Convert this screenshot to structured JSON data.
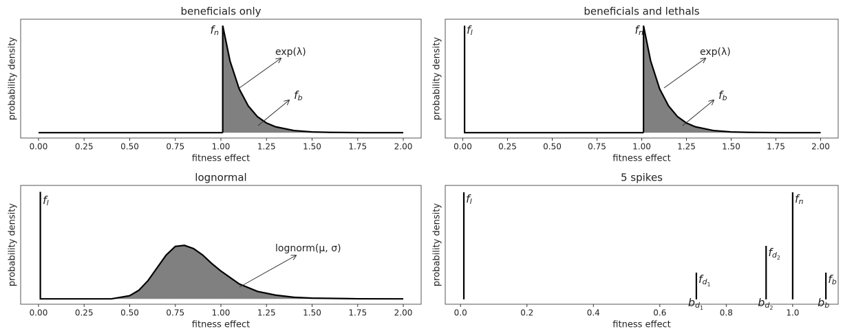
{
  "chart_data": [
    {
      "type": "line",
      "title": "beneficials only",
      "xlabel": "fitness effect",
      "ylabel": "probability density",
      "xlim": [
        -0.098,
        2.098
      ],
      "ylim": [
        -0.05,
        1.06
      ],
      "xticks": [
        {
          "value": 0,
          "label": "0.00"
        },
        0.25,
        {
          "value": 0.5,
          "label": "0.50"
        },
        0.75,
        {
          "value": 1,
          "label": "1.00"
        },
        1.25,
        {
          "value": 1.5,
          "label": "1.50"
        },
        1.75,
        {
          "value": 2,
          "label": "2.00"
        }
      ],
      "series": [
        {
          "color": "#000000",
          "x": [
            0,
            1.01
          ],
          "values": [
            0,
            0
          ]
        },
        {
          "color": "#000000",
          "fill": "#808080",
          "x": [
            1.01,
            1.01,
            1.05,
            1.1,
            1.15,
            1.2,
            1.25,
            1.3,
            1.4,
            1.5,
            1.6,
            1.8,
            2.0
          ],
          "values": [
            0,
            1,
            0.67,
            0.41,
            0.25,
            0.15,
            0.09,
            0.055,
            0.02,
            0.007,
            0.003,
            0,
            0
          ]
        }
      ],
      "annotations": [
        {
          "text": "f",
          "sub": "n"
        },
        {
          "text": "exp(λ)"
        },
        {
          "text": "f",
          "sub": "b"
        }
      ]
    },
    {
      "type": "line",
      "title": "beneficials and lethals",
      "xlabel": "fitness effect",
      "ylabel": "probability density",
      "xlim": [
        -0.098,
        2.098
      ],
      "ylim": [
        -0.05,
        1.06
      ],
      "xticks": [
        {
          "value": 0,
          "label": "0.00"
        },
        0.25,
        {
          "value": 0.5,
          "label": "0.50"
        },
        0.75,
        {
          "value": 1,
          "label": "1.00"
        },
        1.25,
        {
          "value": 1.5,
          "label": "1.50"
        },
        1.75,
        {
          "value": 2,
          "label": "2.00"
        }
      ],
      "series": [
        {
          "color": "#000000",
          "x": [
            0.01,
            0.01,
            0.01,
            1.01
          ],
          "values": [
            1,
            0,
            0,
            0
          ]
        },
        {
          "color": "#000000",
          "fill": "#808080",
          "x": [
            1.01,
            1.01,
            1.05,
            1.1,
            1.15,
            1.2,
            1.25,
            1.3,
            1.4,
            1.5,
            1.6,
            1.8,
            2.0
          ],
          "values": [
            0,
            1,
            0.67,
            0.41,
            0.25,
            0.15,
            0.09,
            0.055,
            0.02,
            0.007,
            0.003,
            0,
            0
          ]
        }
      ],
      "annotations": [
        {
          "text": "f",
          "sub": "l"
        },
        {
          "text": "f",
          "sub": "n"
        },
        {
          "text": "exp(λ)"
        },
        {
          "text": "f",
          "sub": "b"
        }
      ]
    },
    {
      "type": "line",
      "title": "lognormal",
      "xlabel": "fitness effect",
      "ylabel": "probability density",
      "xlim": [
        -0.098,
        2.098
      ],
      "ylim": [
        -0.05,
        1.06
      ],
      "xticks": [
        {
          "value": 0,
          "label": "0.00"
        },
        0.25,
        {
          "value": 0.5,
          "label": "0.50"
        },
        0.75,
        {
          "value": 1,
          "label": "1.00"
        },
        1.25,
        {
          "value": 1.5,
          "label": "1.50"
        },
        1.75,
        {
          "value": 2,
          "label": "2.00"
        }
      ],
      "series": [
        {
          "color": "#000000",
          "x": [
            0.01,
            0.01,
            0.01,
            0.4
          ],
          "values": [
            1,
            0,
            0,
            0
          ]
        },
        {
          "color": "#000000",
          "fill": "#808080",
          "x": [
            0.4,
            0.5,
            0.55,
            0.6,
            0.65,
            0.7,
            0.75,
            0.8,
            0.85,
            0.9,
            0.95,
            1.0,
            1.1,
            1.2,
            1.3,
            1.4,
            1.5,
            1.75,
            2.0
          ],
          "values": [
            0,
            0.03,
            0.08,
            0.17,
            0.29,
            0.41,
            0.49,
            0.5,
            0.47,
            0.41,
            0.33,
            0.26,
            0.14,
            0.07,
            0.035,
            0.015,
            0.007,
            0.001,
            0
          ]
        }
      ],
      "annotations": [
        {
          "text": "f",
          "sub": "l"
        },
        {
          "text": "lognorm(μ, σ)"
        }
      ]
    },
    {
      "type": "spike",
      "title": "5 spikes",
      "xlabel": "fitness effect",
      "ylabel": "probability density",
      "xlim": [
        -0.046,
        1.137
      ],
      "ylim": [
        -0.045,
        1.064
      ],
      "xticks": [
        {
          "value": 0,
          "label": "0.0"
        },
        0.2,
        0.4,
        0.6,
        0.8,
        {
          "value": 1,
          "label": "1.0"
        }
      ],
      "series": [
        {
          "color": "#000000",
          "x": [
            0.01,
            0.71,
            0.92,
            1.0,
            1.1
          ],
          "values": [
            1,
            0.25,
            0.5,
            1,
            0.25
          ],
          "labels": [
            {
              "text": "f",
              "sub": "l"
            },
            {
              "text": "f",
              "sub": "d",
              "subsub": "1"
            },
            {
              "text": "f",
              "sub": "d",
              "subsub": "2"
            },
            {
              "text": "f",
              "sub": "n"
            },
            {
              "text": "f",
              "sub": "b"
            }
          ],
          "base_labels": [
            null,
            {
              "text": "b",
              "sub": "d",
              "subsub": "1"
            },
            {
              "text": "b",
              "sub": "d",
              "subsub": "2"
            },
            null,
            {
              "text": "b",
              "sub": "b"
            }
          ]
        }
      ]
    }
  ]
}
